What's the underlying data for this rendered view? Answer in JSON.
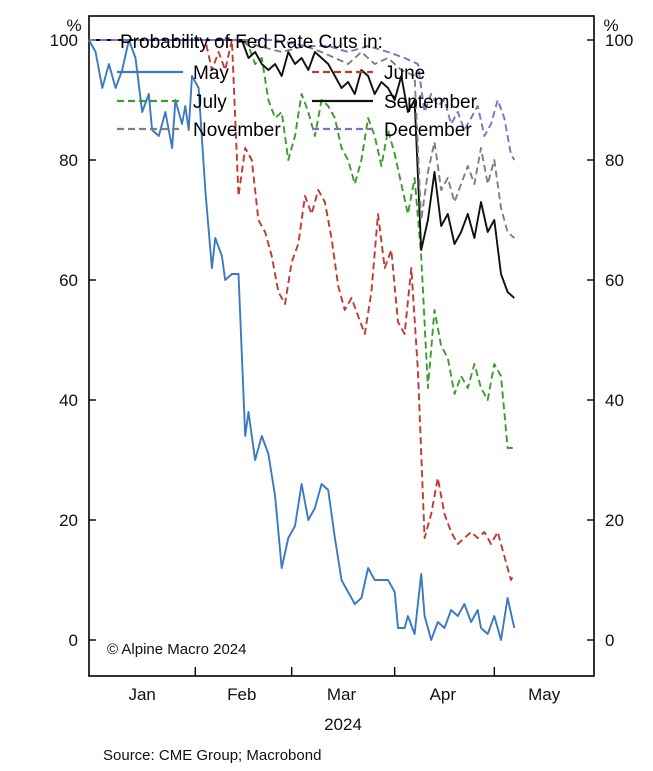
{
  "chart_data": {
    "type": "line",
    "y_unit_left": "%",
    "y_unit_right": "%",
    "ylim": [
      -6,
      104
    ],
    "yticks": [
      0,
      20,
      40,
      60,
      80,
      100
    ],
    "xlabel": "2024",
    "months": [
      {
        "label": "Jan",
        "start": "2024-01-01",
        "end": "2024-01-31"
      },
      {
        "label": "Feb",
        "start": "2024-02-01",
        "end": "2024-02-29"
      },
      {
        "label": "Mar",
        "start": "2024-03-01",
        "end": "2024-03-31"
      },
      {
        "label": "Apr",
        "start": "2024-04-01",
        "end": "2024-04-30"
      },
      {
        "label": "May",
        "start": "2024-05-01",
        "end": "2024-05-31"
      }
    ],
    "xlim": [
      "2023-12-31",
      "2024-05-31"
    ],
    "legend_title": "Probability of Fed Rate Cuts in:",
    "legend_position": "top-left",
    "copyright": "© Alpine Macro 2024",
    "source": "Source: CME Group; Macrobond",
    "series": [
      {
        "name": "May",
        "color": "#3b79c3",
        "dash": "solid",
        "points": [
          [
            "2023-12-31",
            100
          ],
          [
            "2024-01-02",
            98
          ],
          [
            "2024-01-04",
            92
          ],
          [
            "2024-01-06",
            96
          ],
          [
            "2024-01-08",
            92
          ],
          [
            "2024-01-10",
            95
          ],
          [
            "2024-01-12",
            100
          ],
          [
            "2024-01-14",
            97
          ],
          [
            "2024-01-16",
            88
          ],
          [
            "2024-01-18",
            91
          ],
          [
            "2024-01-19",
            85
          ],
          [
            "2024-01-21",
            84
          ],
          [
            "2024-01-23",
            88
          ],
          [
            "2024-01-25",
            82
          ],
          [
            "2024-01-26",
            90
          ],
          [
            "2024-01-28",
            86
          ],
          [
            "2024-01-29",
            89
          ],
          [
            "2024-01-30",
            85
          ],
          [
            "2024-01-31",
            94
          ],
          [
            "2024-02-02",
            92
          ],
          [
            "2024-02-04",
            75
          ],
          [
            "2024-02-06",
            62
          ],
          [
            "2024-02-07",
            67
          ],
          [
            "2024-02-09",
            64
          ],
          [
            "2024-02-10",
            60
          ],
          [
            "2024-02-12",
            61
          ],
          [
            "2024-02-14",
            61
          ],
          [
            "2024-02-16",
            34
          ],
          [
            "2024-02-17",
            38
          ],
          [
            "2024-02-19",
            30
          ],
          [
            "2024-02-21",
            34
          ],
          [
            "2024-02-23",
            31
          ],
          [
            "2024-02-25",
            24
          ],
          [
            "2024-02-27",
            12
          ],
          [
            "2024-02-29",
            17
          ],
          [
            "2024-03-02",
            19
          ],
          [
            "2024-03-04",
            26
          ],
          [
            "2024-03-06",
            20
          ],
          [
            "2024-03-08",
            22
          ],
          [
            "2024-03-10",
            26
          ],
          [
            "2024-03-12",
            25
          ],
          [
            "2024-03-14",
            17
          ],
          [
            "2024-03-16",
            10
          ],
          [
            "2024-03-18",
            8
          ],
          [
            "2024-03-20",
            6
          ],
          [
            "2024-03-22",
            7
          ],
          [
            "2024-03-24",
            12
          ],
          [
            "2024-03-26",
            10
          ],
          [
            "2024-03-28",
            10
          ],
          [
            "2024-03-30",
            10
          ],
          [
            "2024-04-01",
            8
          ],
          [
            "2024-04-02",
            2
          ],
          [
            "2024-04-04",
            2
          ],
          [
            "2024-04-05",
            4
          ],
          [
            "2024-04-07",
            1
          ],
          [
            "2024-04-09",
            11
          ],
          [
            "2024-04-10",
            4
          ],
          [
            "2024-04-12",
            0
          ],
          [
            "2024-04-14",
            3
          ],
          [
            "2024-04-16",
            2
          ],
          [
            "2024-04-18",
            5
          ],
          [
            "2024-04-20",
            4
          ],
          [
            "2024-04-22",
            6
          ],
          [
            "2024-04-24",
            3
          ],
          [
            "2024-04-26",
            5
          ],
          [
            "2024-04-27",
            2
          ],
          [
            "2024-04-29",
            1
          ],
          [
            "2024-05-01",
            4
          ],
          [
            "2024-05-03",
            0
          ],
          [
            "2024-05-05",
            7
          ],
          [
            "2024-05-07",
            2
          ]
        ]
      },
      {
        "name": "June",
        "color": "#bf3b32",
        "dash": "dashed",
        "points": [
          [
            "2023-12-31",
            100
          ],
          [
            "2024-01-31",
            100
          ],
          [
            "2024-02-04",
            100
          ],
          [
            "2024-02-06",
            95
          ],
          [
            "2024-02-08",
            98
          ],
          [
            "2024-02-10",
            95
          ],
          [
            "2024-02-12",
            100
          ],
          [
            "2024-02-14",
            74
          ],
          [
            "2024-02-16",
            82
          ],
          [
            "2024-02-18",
            80
          ],
          [
            "2024-02-20",
            70
          ],
          [
            "2024-02-22",
            68
          ],
          [
            "2024-02-24",
            64
          ],
          [
            "2024-02-26",
            58
          ],
          [
            "2024-02-28",
            56
          ],
          [
            "2024-03-01",
            63
          ],
          [
            "2024-03-03",
            66
          ],
          [
            "2024-03-05",
            74
          ],
          [
            "2024-03-07",
            71
          ],
          [
            "2024-03-09",
            75
          ],
          [
            "2024-03-11",
            73
          ],
          [
            "2024-03-13",
            67
          ],
          [
            "2024-03-15",
            59
          ],
          [
            "2024-03-17",
            55
          ],
          [
            "2024-03-19",
            57
          ],
          [
            "2024-03-21",
            54
          ],
          [
            "2024-03-23",
            51
          ],
          [
            "2024-03-25",
            58
          ],
          [
            "2024-03-27",
            71
          ],
          [
            "2024-03-29",
            62
          ],
          [
            "2024-03-31",
            65
          ],
          [
            "2024-04-02",
            53
          ],
          [
            "2024-04-04",
            51
          ],
          [
            "2024-04-06",
            62
          ],
          [
            "2024-04-08",
            45
          ],
          [
            "2024-04-10",
            17
          ],
          [
            "2024-04-12",
            21
          ],
          [
            "2024-04-14",
            27
          ],
          [
            "2024-04-16",
            21
          ],
          [
            "2024-04-18",
            18
          ],
          [
            "2024-04-20",
            16
          ],
          [
            "2024-04-22",
            17
          ],
          [
            "2024-04-24",
            18
          ],
          [
            "2024-04-26",
            17
          ],
          [
            "2024-04-28",
            18
          ],
          [
            "2024-04-30",
            16
          ],
          [
            "2024-05-02",
            18
          ],
          [
            "2024-05-04",
            14
          ],
          [
            "2024-05-06",
            10
          ],
          [
            "2024-05-07",
            11
          ]
        ]
      },
      {
        "name": "July",
        "color": "#3f9a2f",
        "dash": "dashed",
        "points": [
          [
            "2023-12-31",
            100
          ],
          [
            "2024-02-15",
            100
          ],
          [
            "2024-02-17",
            99
          ],
          [
            "2024-02-19",
            96
          ],
          [
            "2024-02-21",
            97
          ],
          [
            "2024-02-23",
            90
          ],
          [
            "2024-02-25",
            87
          ],
          [
            "2024-02-27",
            88
          ],
          [
            "2024-02-29",
            80
          ],
          [
            "2024-03-02",
            84
          ],
          [
            "2024-03-04",
            91
          ],
          [
            "2024-03-06",
            88
          ],
          [
            "2024-03-08",
            84
          ],
          [
            "2024-03-10",
            90
          ],
          [
            "2024-03-12",
            89
          ],
          [
            "2024-03-14",
            87
          ],
          [
            "2024-03-16",
            82
          ],
          [
            "2024-03-18",
            80
          ],
          [
            "2024-03-20",
            76
          ],
          [
            "2024-03-22",
            80
          ],
          [
            "2024-03-24",
            87
          ],
          [
            "2024-03-26",
            84
          ],
          [
            "2024-03-28",
            79
          ],
          [
            "2024-03-30",
            85
          ],
          [
            "2024-04-01",
            81
          ],
          [
            "2024-04-03",
            76
          ],
          [
            "2024-04-05",
            71
          ],
          [
            "2024-04-07",
            77
          ],
          [
            "2024-04-09",
            64
          ],
          [
            "2024-04-11",
            42
          ],
          [
            "2024-04-13",
            55
          ],
          [
            "2024-04-15",
            49
          ],
          [
            "2024-04-17",
            47
          ],
          [
            "2024-04-19",
            41
          ],
          [
            "2024-04-21",
            44
          ],
          [
            "2024-04-23",
            42
          ],
          [
            "2024-04-25",
            46
          ],
          [
            "2024-04-27",
            42
          ],
          [
            "2024-04-29",
            40
          ],
          [
            "2024-05-01",
            46
          ],
          [
            "2024-05-03",
            44
          ],
          [
            "2024-05-05",
            32
          ],
          [
            "2024-05-07",
            32
          ]
        ]
      },
      {
        "name": "September",
        "color": "#111111",
        "dash": "solid",
        "points": [
          [
            "2023-12-31",
            100
          ],
          [
            "2024-02-15",
            100
          ],
          [
            "2024-02-17",
            97
          ],
          [
            "2024-02-19",
            98
          ],
          [
            "2024-02-21",
            96
          ],
          [
            "2024-02-23",
            95
          ],
          [
            "2024-02-25",
            96
          ],
          [
            "2024-02-27",
            94
          ],
          [
            "2024-02-29",
            98
          ],
          [
            "2024-03-02",
            96
          ],
          [
            "2024-03-04",
            97
          ],
          [
            "2024-03-06",
            95
          ],
          [
            "2024-03-08",
            98
          ],
          [
            "2024-03-10",
            97
          ],
          [
            "2024-03-12",
            96
          ],
          [
            "2024-03-14",
            94
          ],
          [
            "2024-03-16",
            92
          ],
          [
            "2024-03-18",
            93
          ],
          [
            "2024-03-20",
            91
          ],
          [
            "2024-03-22",
            95
          ],
          [
            "2024-03-24",
            94
          ],
          [
            "2024-03-26",
            91
          ],
          [
            "2024-03-28",
            93
          ],
          [
            "2024-03-30",
            92
          ],
          [
            "2024-04-01",
            90
          ],
          [
            "2024-04-03",
            94
          ],
          [
            "2024-04-05",
            88
          ],
          [
            "2024-04-07",
            90
          ],
          [
            "2024-04-09",
            65
          ],
          [
            "2024-04-11",
            70
          ],
          [
            "2024-04-13",
            78
          ],
          [
            "2024-04-15",
            69
          ],
          [
            "2024-04-17",
            71
          ],
          [
            "2024-04-19",
            66
          ],
          [
            "2024-04-21",
            68
          ],
          [
            "2024-04-23",
            71
          ],
          [
            "2024-04-25",
            67
          ],
          [
            "2024-04-27",
            73
          ],
          [
            "2024-04-29",
            68
          ],
          [
            "2024-05-01",
            70
          ],
          [
            "2024-05-03",
            61
          ],
          [
            "2024-05-05",
            58
          ],
          [
            "2024-05-07",
            57
          ]
        ]
      },
      {
        "name": "November",
        "color": "#7f7f7f",
        "dash": "dashed",
        "points": [
          [
            "2023-12-31",
            100
          ],
          [
            "2024-02-15",
            100
          ],
          [
            "2024-02-20",
            99
          ],
          [
            "2024-02-27",
            98
          ],
          [
            "2024-03-05",
            99
          ],
          [
            "2024-03-10",
            98
          ],
          [
            "2024-03-14",
            97
          ],
          [
            "2024-03-18",
            96
          ],
          [
            "2024-03-22",
            98
          ],
          [
            "2024-03-26",
            96
          ],
          [
            "2024-03-30",
            97
          ],
          [
            "2024-04-03",
            95
          ],
          [
            "2024-04-07",
            94
          ],
          [
            "2024-04-09",
            70
          ],
          [
            "2024-04-11",
            78
          ],
          [
            "2024-04-13",
            83
          ],
          [
            "2024-04-15",
            75
          ],
          [
            "2024-04-17",
            77
          ],
          [
            "2024-04-19",
            73
          ],
          [
            "2024-04-21",
            76
          ],
          [
            "2024-04-23",
            79
          ],
          [
            "2024-04-25",
            76
          ],
          [
            "2024-04-27",
            82
          ],
          [
            "2024-04-29",
            76
          ],
          [
            "2024-05-01",
            80
          ],
          [
            "2024-05-03",
            72
          ],
          [
            "2024-05-05",
            68
          ],
          [
            "2024-05-07",
            67
          ]
        ]
      },
      {
        "name": "December",
        "color": "#7b72c0",
        "dash": "dashed",
        "points": [
          [
            "2023-12-31",
            100
          ],
          [
            "2024-02-15",
            100
          ],
          [
            "2024-02-25",
            100
          ],
          [
            "2024-03-05",
            99
          ],
          [
            "2024-03-12",
            99
          ],
          [
            "2024-03-18",
            98
          ],
          [
            "2024-03-24",
            99
          ],
          [
            "2024-03-30",
            98
          ],
          [
            "2024-04-04",
            97
          ],
          [
            "2024-04-08",
            96
          ],
          [
            "2024-04-10",
            88
          ],
          [
            "2024-04-12",
            91
          ],
          [
            "2024-04-14",
            89
          ],
          [
            "2024-04-16",
            90
          ],
          [
            "2024-04-18",
            86
          ],
          [
            "2024-04-20",
            88
          ],
          [
            "2024-04-22",
            85
          ],
          [
            "2024-04-24",
            87
          ],
          [
            "2024-04-26",
            89
          ],
          [
            "2024-04-28",
            84
          ],
          [
            "2024-04-30",
            86
          ],
          [
            "2024-05-02",
            90
          ],
          [
            "2024-05-04",
            87
          ],
          [
            "2024-05-06",
            81
          ],
          [
            "2024-05-07",
            80
          ]
        ]
      }
    ]
  }
}
